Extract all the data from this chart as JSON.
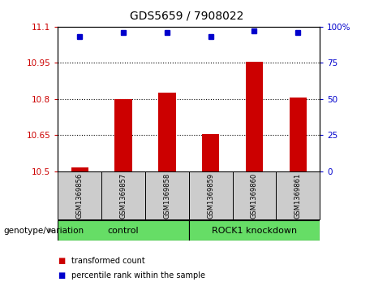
{
  "title": "GDS5659 / 7908022",
  "samples": [
    "GSM1369856",
    "GSM1369857",
    "GSM1369858",
    "GSM1369859",
    "GSM1369860",
    "GSM1369861"
  ],
  "bar_values": [
    10.515,
    10.8,
    10.825,
    10.655,
    10.955,
    10.805
  ],
  "percentile_values": [
    93,
    96,
    96,
    93,
    97,
    96
  ],
  "ylim_left": [
    10.5,
    11.1
  ],
  "ylim_right": [
    0,
    100
  ],
  "yticks_left": [
    10.5,
    10.65,
    10.8,
    10.95,
    11.1
  ],
  "ytick_labels_left": [
    "10.5",
    "10.65",
    "10.8",
    "10.95",
    "11.1"
  ],
  "yticks_right": [
    0,
    25,
    50,
    75,
    100
  ],
  "ytick_labels_right": [
    "0",
    "25",
    "50",
    "75",
    "100%"
  ],
  "hlines": [
    10.65,
    10.8,
    10.95
  ],
  "bar_color": "#cc0000",
  "dot_color": "#0000cc",
  "bar_width": 0.4,
  "sample_box_color": "#cccccc",
  "group_box_color": "#66dd66",
  "control_label": "control",
  "knockdown_label": "ROCK1 knockdown",
  "genotype_label": "genotype/variation",
  "legend_bar_label": "transformed count",
  "legend_dot_label": "percentile rank within the sample"
}
